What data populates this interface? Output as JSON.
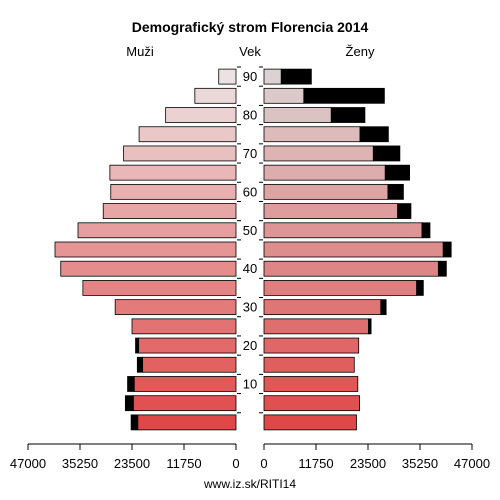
{
  "chart_data": {
    "type": "bar",
    "subtype": "population-pyramid",
    "title": "Demografický strom Florencia 2014",
    "left_label": "Muži",
    "center_label": "Vek",
    "right_label": "Ženy",
    "source": "www.iz.sk/RITI14",
    "age_ticks": [
      "10",
      "20",
      "30",
      "40",
      "50",
      "60",
      "70",
      "80",
      "90"
    ],
    "x_ticks_left": [
      "47000",
      "35250",
      "23500",
      "11750",
      "0"
    ],
    "x_ticks_right": [
      "0",
      "11750",
      "23500",
      "35250",
      "47000"
    ],
    "xlim": [
      0,
      47000
    ],
    "age_groups": [
      "0-4",
      "5-9",
      "10-14",
      "15-19",
      "20-24",
      "25-29",
      "30-34",
      "35-39",
      "40-44",
      "45-49",
      "50-54",
      "55-59",
      "60-64",
      "65-69",
      "70-74",
      "75-79",
      "80-84",
      "85-89",
      "90+"
    ],
    "male_values": [
      22200,
      23200,
      23000,
      21100,
      22000,
      23500,
      27300,
      34600,
      39600,
      40900,
      35700,
      30000,
      28300,
      28500,
      25400,
      21900,
      15900,
      9300,
      3900
    ],
    "male_excess": [
      1500,
      1800,
      1500,
      1200,
      700,
      0,
      0,
      0,
      0,
      0,
      0,
      0,
      0,
      0,
      0,
      0,
      0,
      0,
      0
    ],
    "female_values": [
      20900,
      21600,
      21200,
      20400,
      21400,
      24200,
      27600,
      36000,
      41200,
      42300,
      37500,
      33200,
      31500,
      32900,
      30700,
      28100,
      22800,
      27200,
      10700
    ],
    "female_excess": [
      0,
      0,
      0,
      0,
      0,
      0,
      0,
      0,
      0,
      0,
      0,
      0,
      0,
      0,
      0,
      0,
      0,
      0,
      0
    ],
    "male_light_values": [
      0,
      0,
      0,
      0,
      0,
      0,
      0,
      0,
      0,
      0,
      0,
      0,
      0,
      0,
      0,
      0,
      0,
      0,
      0
    ],
    "female_dark_part": [
      0,
      0,
      0,
      0,
      0,
      600,
      1200,
      1500,
      1800,
      1800,
      1800,
      3000,
      3500,
      5500,
      6000,
      6400,
      7600,
      18200,
      6800
    ],
    "colors": {
      "bar_young": "#e04848",
      "bar_old": "#ecdede",
      "excess": "#000000"
    }
  }
}
